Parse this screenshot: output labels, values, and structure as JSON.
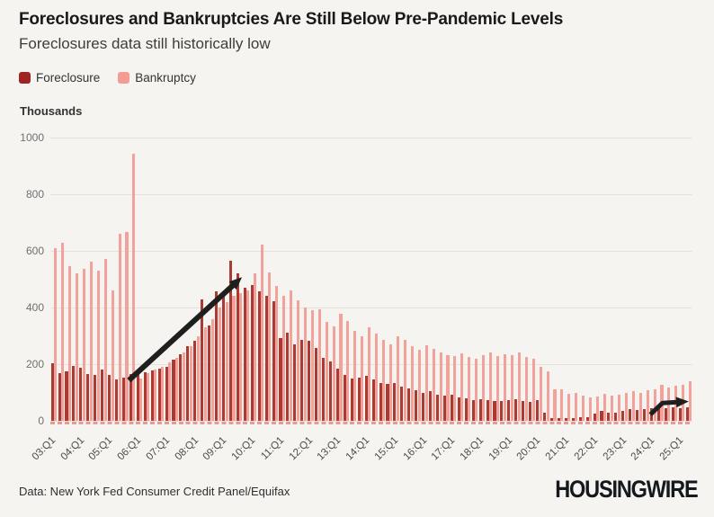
{
  "header": {
    "title": "Foreclosures and Bankruptcies Are Still Below Pre-Pandemic Levels",
    "subtitle": "Foreclosures data still historically low"
  },
  "legend": [
    {
      "label": "Foreclosure",
      "color": "#a02522"
    },
    {
      "label": "Bankruptcy",
      "color": "#f59b95"
    }
  ],
  "chart_data": {
    "type": "bar",
    "title": "Foreclosures and Bankruptcies Are Still Below Pre-Pandemic Levels",
    "subtitle": "Foreclosures data still historically low",
    "unit_label": "Thousands",
    "ylim": [
      0,
      1000
    ],
    "yticks": [
      0,
      200,
      400,
      600,
      800,
      1000
    ],
    "grid": "horizontal",
    "legend_position": "top-left",
    "categories": [
      "03:Q1",
      "03:Q2",
      "03:Q3",
      "03:Q4",
      "04:Q1",
      "04:Q2",
      "04:Q3",
      "04:Q4",
      "05:Q1",
      "05:Q2",
      "05:Q3",
      "05:Q4",
      "06:Q1",
      "06:Q2",
      "06:Q3",
      "06:Q4",
      "07:Q1",
      "07:Q2",
      "07:Q3",
      "07:Q4",
      "08:Q1",
      "08:Q2",
      "08:Q3",
      "08:Q4",
      "09:Q1",
      "09:Q2",
      "09:Q3",
      "09:Q4",
      "10:Q1",
      "10:Q2",
      "10:Q3",
      "10:Q4",
      "11:Q1",
      "11:Q2",
      "11:Q3",
      "11:Q4",
      "12:Q1",
      "12:Q2",
      "12:Q3",
      "12:Q4",
      "13:Q1",
      "13:Q2",
      "13:Q3",
      "13:Q4",
      "14:Q1",
      "14:Q2",
      "14:Q3",
      "14:Q4",
      "15:Q1",
      "15:Q2",
      "15:Q3",
      "15:Q4",
      "16:Q1",
      "16:Q2",
      "16:Q3",
      "16:Q4",
      "17:Q1",
      "17:Q2",
      "17:Q3",
      "17:Q4",
      "18:Q1",
      "18:Q2",
      "18:Q3",
      "18:Q4",
      "19:Q1",
      "19:Q2",
      "19:Q3",
      "19:Q4",
      "20:Q1",
      "20:Q2",
      "20:Q3",
      "20:Q4",
      "21:Q1",
      "21:Q2",
      "21:Q3",
      "21:Q4",
      "22:Q1",
      "22:Q2",
      "22:Q3",
      "22:Q4",
      "23:Q1",
      "23:Q2",
      "23:Q3",
      "23:Q4",
      "24:Q1",
      "24:Q2",
      "24:Q3",
      "24:Q4",
      "25:Q1",
      "25:Q2"
    ],
    "x_tick_labels": [
      "03:Q1",
      "04:Q1",
      "05:Q1",
      "06:Q1",
      "07:Q1",
      "08:Q1",
      "09:Q1",
      "10:Q1",
      "11:Q1",
      "12:Q1",
      "13:Q1",
      "14:Q1",
      "15:Q1",
      "16:Q1",
      "17:Q1",
      "18:Q1",
      "19:Q1",
      "20:Q1",
      "21:Q1",
      "22:Q1",
      "23:Q1",
      "24:Q1",
      "25:Q1"
    ],
    "series": [
      {
        "name": "Foreclosure",
        "color": "#a93b32",
        "values": [
          203,
          168,
          176,
          194,
          187,
          166,
          161,
          180,
          163,
          146,
          152,
          166,
          164,
          172,
          178,
          184,
          190,
          216,
          234,
          262,
          282,
          430,
          335,
          456,
          445,
          566,
          522,
          470,
          480,
          458,
          440,
          422,
          291,
          311,
          270,
          286,
          283,
          256,
          223,
          208,
          185,
          163,
          149,
          153,
          160,
          145,
          133,
          129,
          134,
          121,
          113,
          109,
          98,
          104,
          93,
          89,
          92,
          84,
          79,
          73,
          77,
          73,
          71,
          69,
          72,
          76,
          71,
          66,
          74,
          28,
          10,
          11,
          9,
          11,
          14,
          12,
          24,
          35,
          30,
          29,
          36,
          40,
          38,
          42,
          44,
          48,
          45,
          47,
          46,
          48
        ]
      },
      {
        "name": "Bankruptcy",
        "color": "#f2a29b",
        "values": [
          610,
          629,
          546,
          522,
          537,
          561,
          531,
          571,
          461,
          659,
          666,
          943,
          150,
          168,
          180,
          192,
          205,
          222,
          240,
          265,
          300,
          330,
          360,
          400,
          420,
          440,
          450,
          460,
          522,
          621,
          523,
          475,
          440,
          460,
          425,
          400,
          390,
          395,
          350,
          332,
          378,
          352,
          316,
          300,
          330,
          308,
          285,
          270,
          300,
          285,
          262,
          250,
          268,
          255,
          240,
          232,
          228,
          238,
          225,
          218,
          232,
          242,
          228,
          235,
          233,
          240,
          225,
          218,
          192,
          175,
          110,
          112,
          95,
          100,
          88,
          84,
          86,
          96,
          90,
          92,
          98,
          106,
          100,
          108,
          112,
          126,
          118,
          124,
          127,
          140
        ]
      }
    ],
    "annotations": [
      {
        "shape": "arrow",
        "color": "#1f1f1f",
        "stroke_width": 6,
        "points_xi_value": [
          [
            10.5,
            143
          ],
          [
            25.7,
            492
          ]
        ]
      },
      {
        "shape": "arrow",
        "color": "#1f1f1f",
        "stroke_width": 5,
        "points_xi_value": [
          [
            83.6,
            22
          ],
          [
            85.3,
            63
          ],
          [
            88.1,
            67
          ]
        ]
      }
    ]
  },
  "footer": {
    "source": "Data: New York Fed Consumer Credit Panel/Equifax",
    "logo": "HOUSINGWIRE"
  }
}
